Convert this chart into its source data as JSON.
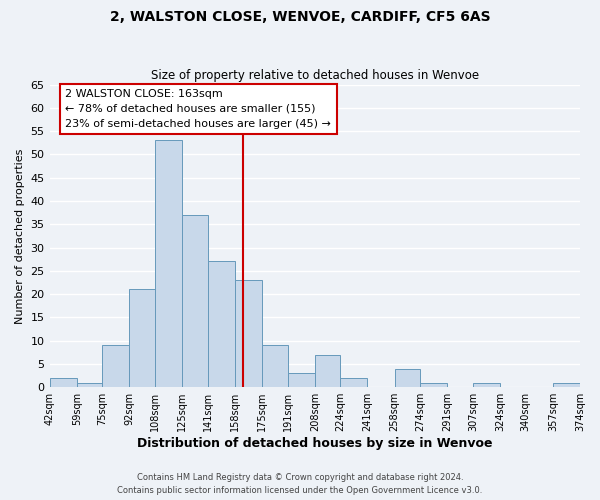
{
  "title1": "2, WALSTON CLOSE, WENVOE, CARDIFF, CF5 6AS",
  "title2": "Size of property relative to detached houses in Wenvoe",
  "xlabel": "Distribution of detached houses by size in Wenvoe",
  "ylabel": "Number of detached properties",
  "bin_labels": [
    "42sqm",
    "59sqm",
    "75sqm",
    "92sqm",
    "108sqm",
    "125sqm",
    "141sqm",
    "158sqm",
    "175sqm",
    "191sqm",
    "208sqm",
    "224sqm",
    "241sqm",
    "258sqm",
    "274sqm",
    "291sqm",
    "307sqm",
    "324sqm",
    "340sqm",
    "357sqm",
    "374sqm"
  ],
  "bin_edges": [
    42,
    59,
    75,
    92,
    108,
    125,
    141,
    158,
    175,
    191,
    208,
    224,
    241,
    258,
    274,
    291,
    307,
    324,
    340,
    357,
    374
  ],
  "counts": [
    2,
    1,
    9,
    21,
    53,
    37,
    27,
    23,
    9,
    3,
    7,
    2,
    0,
    4,
    1,
    0,
    1,
    0,
    0,
    1
  ],
  "bar_color": "#c8d8ea",
  "bar_edge_color": "#6699bb",
  "property_value": 163,
  "vline_color": "#cc0000",
  "annotation_line1": "2 WALSTON CLOSE: 163sqm",
  "annotation_line2": "← 78% of detached houses are smaller (155)",
  "annotation_line3": "23% of semi-detached houses are larger (45) →",
  "annotation_box_edge": "#cc0000",
  "annotation_box_face": "#ffffff",
  "ylim": [
    0,
    65
  ],
  "yticks": [
    0,
    5,
    10,
    15,
    20,
    25,
    30,
    35,
    40,
    45,
    50,
    55,
    60,
    65
  ],
  "footer1": "Contains HM Land Registry data © Crown copyright and database right 2024.",
  "footer2": "Contains public sector information licensed under the Open Government Licence v3.0.",
  "background_color": "#eef2f7",
  "grid_color": "#ffffff"
}
